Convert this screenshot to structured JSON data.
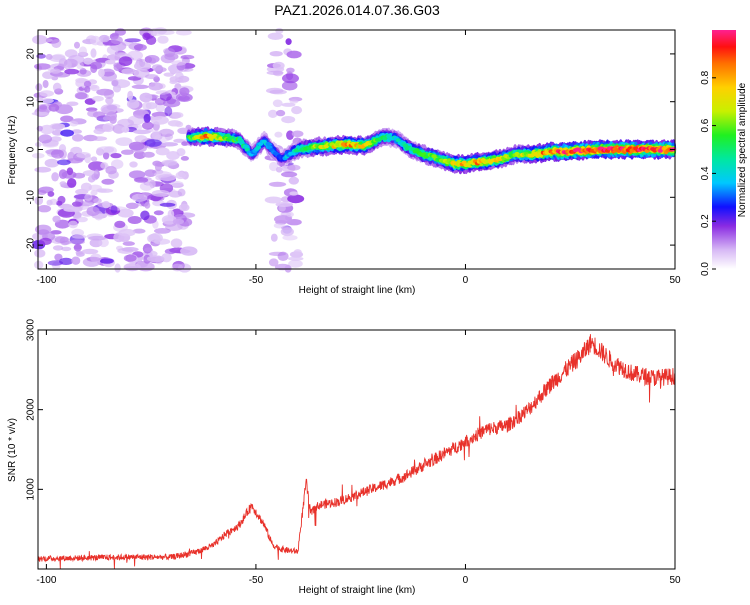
{
  "title": "PAZ1.2026.014.07.36.G03",
  "colors": {
    "series": "#e8312a",
    "axis": "#000000"
  },
  "chart_data": [
    {
      "type": "heatmap",
      "title": "PAZ1.2026.014.07.36.G03",
      "xlabel": "Height of straight line (km)",
      "ylabel": "Frequency (Hz)",
      "xlim": [
        -102,
        50
      ],
      "ylim": [
        -25,
        25
      ],
      "x_ticks": [
        -100,
        -50,
        0,
        50
      ],
      "x_tick_labels": [
        "-100",
        "-50",
        "0",
        "50"
      ],
      "y_ticks": [
        20,
        10,
        0,
        -10,
        -20
      ],
      "y_tick_labels": [
        "20",
        "10",
        "0",
        "-10",
        "-20"
      ],
      "ridge": {
        "x": [
          -66,
          -62,
          -58,
          -54,
          -51,
          -48,
          -44,
          -40,
          -36,
          -32,
          -28,
          -24,
          -20,
          -17,
          -14,
          -10,
          -6,
          -3,
          0,
          4,
          8,
          12,
          16,
          20,
          26,
          32,
          40,
          50
        ],
        "freq": [
          2.5,
          2.8,
          2.5,
          2.0,
          -1.0,
          1.8,
          -2.0,
          0.0,
          0.5,
          0.8,
          1.0,
          0.8,
          2.5,
          2.5,
          0.5,
          -1.0,
          -2.0,
          -3.0,
          -3.0,
          -2.5,
          -2.0,
          -1.0,
          -1.0,
          -0.5,
          -0.3,
          0.0,
          0.0,
          0.0
        ],
        "amp": [
          0.5,
          0.8,
          0.6,
          0.5,
          0.35,
          0.4,
          0.3,
          0.45,
          0.6,
          0.7,
          0.8,
          0.7,
          0.5,
          0.4,
          0.45,
          0.55,
          0.6,
          0.7,
          0.75,
          0.8,
          0.7,
          0.6,
          0.75,
          0.85,
          0.95,
          0.95,
          0.95,
          0.9
        ]
      },
      "noise_regions": [
        [
          -102,
          -66
        ],
        [
          -46,
          -40
        ]
      ],
      "colorbar": {
        "label": "Normalized spectral amplitude",
        "range": [
          0,
          1
        ],
        "ticks": [
          0.0,
          0.2,
          0.4,
          0.6,
          0.8
        ],
        "tick_labels": [
          "0.0",
          "0.2",
          "0.4",
          "0.6",
          "0.8"
        ]
      }
    },
    {
      "type": "line",
      "title": "",
      "xlabel": "Height of straight line (km)",
      "ylabel": "SNR (10 * v/v)",
      "xlim": [
        -102,
        50
      ],
      "ylim": [
        0,
        3000
      ],
      "x_ticks": [
        -100,
        -50,
        0,
        50
      ],
      "x_tick_labels": [
        "-100",
        "-50",
        "0",
        "50"
      ],
      "y_ticks": [
        1000,
        2000,
        3000
      ],
      "y_tick_labels": [
        "1000",
        "2000",
        "3000"
      ],
      "envelope": {
        "x": [
          -102,
          -90,
          -80,
          -70,
          -65,
          -60,
          -57,
          -54,
          -51,
          -48,
          -46,
          -44,
          -42,
          -40,
          -38,
          -37,
          -35,
          -30,
          -25,
          -20,
          -15,
          -10,
          -5,
          0,
          5,
          10,
          15,
          20,
          25,
          28,
          30,
          33,
          35,
          40,
          45,
          50
        ],
        "y": [
          130,
          140,
          150,
          150,
          200,
          300,
          450,
          550,
          800,
          550,
          300,
          250,
          230,
          220,
          1100,
          700,
          800,
          850,
          950,
          1050,
          1150,
          1300,
          1450,
          1600,
          1750,
          1800,
          2000,
          2300,
          2550,
          2700,
          2850,
          2700,
          2600,
          2450,
          2400,
          2420
        ]
      },
      "noise_amplitude": 160
    }
  ]
}
